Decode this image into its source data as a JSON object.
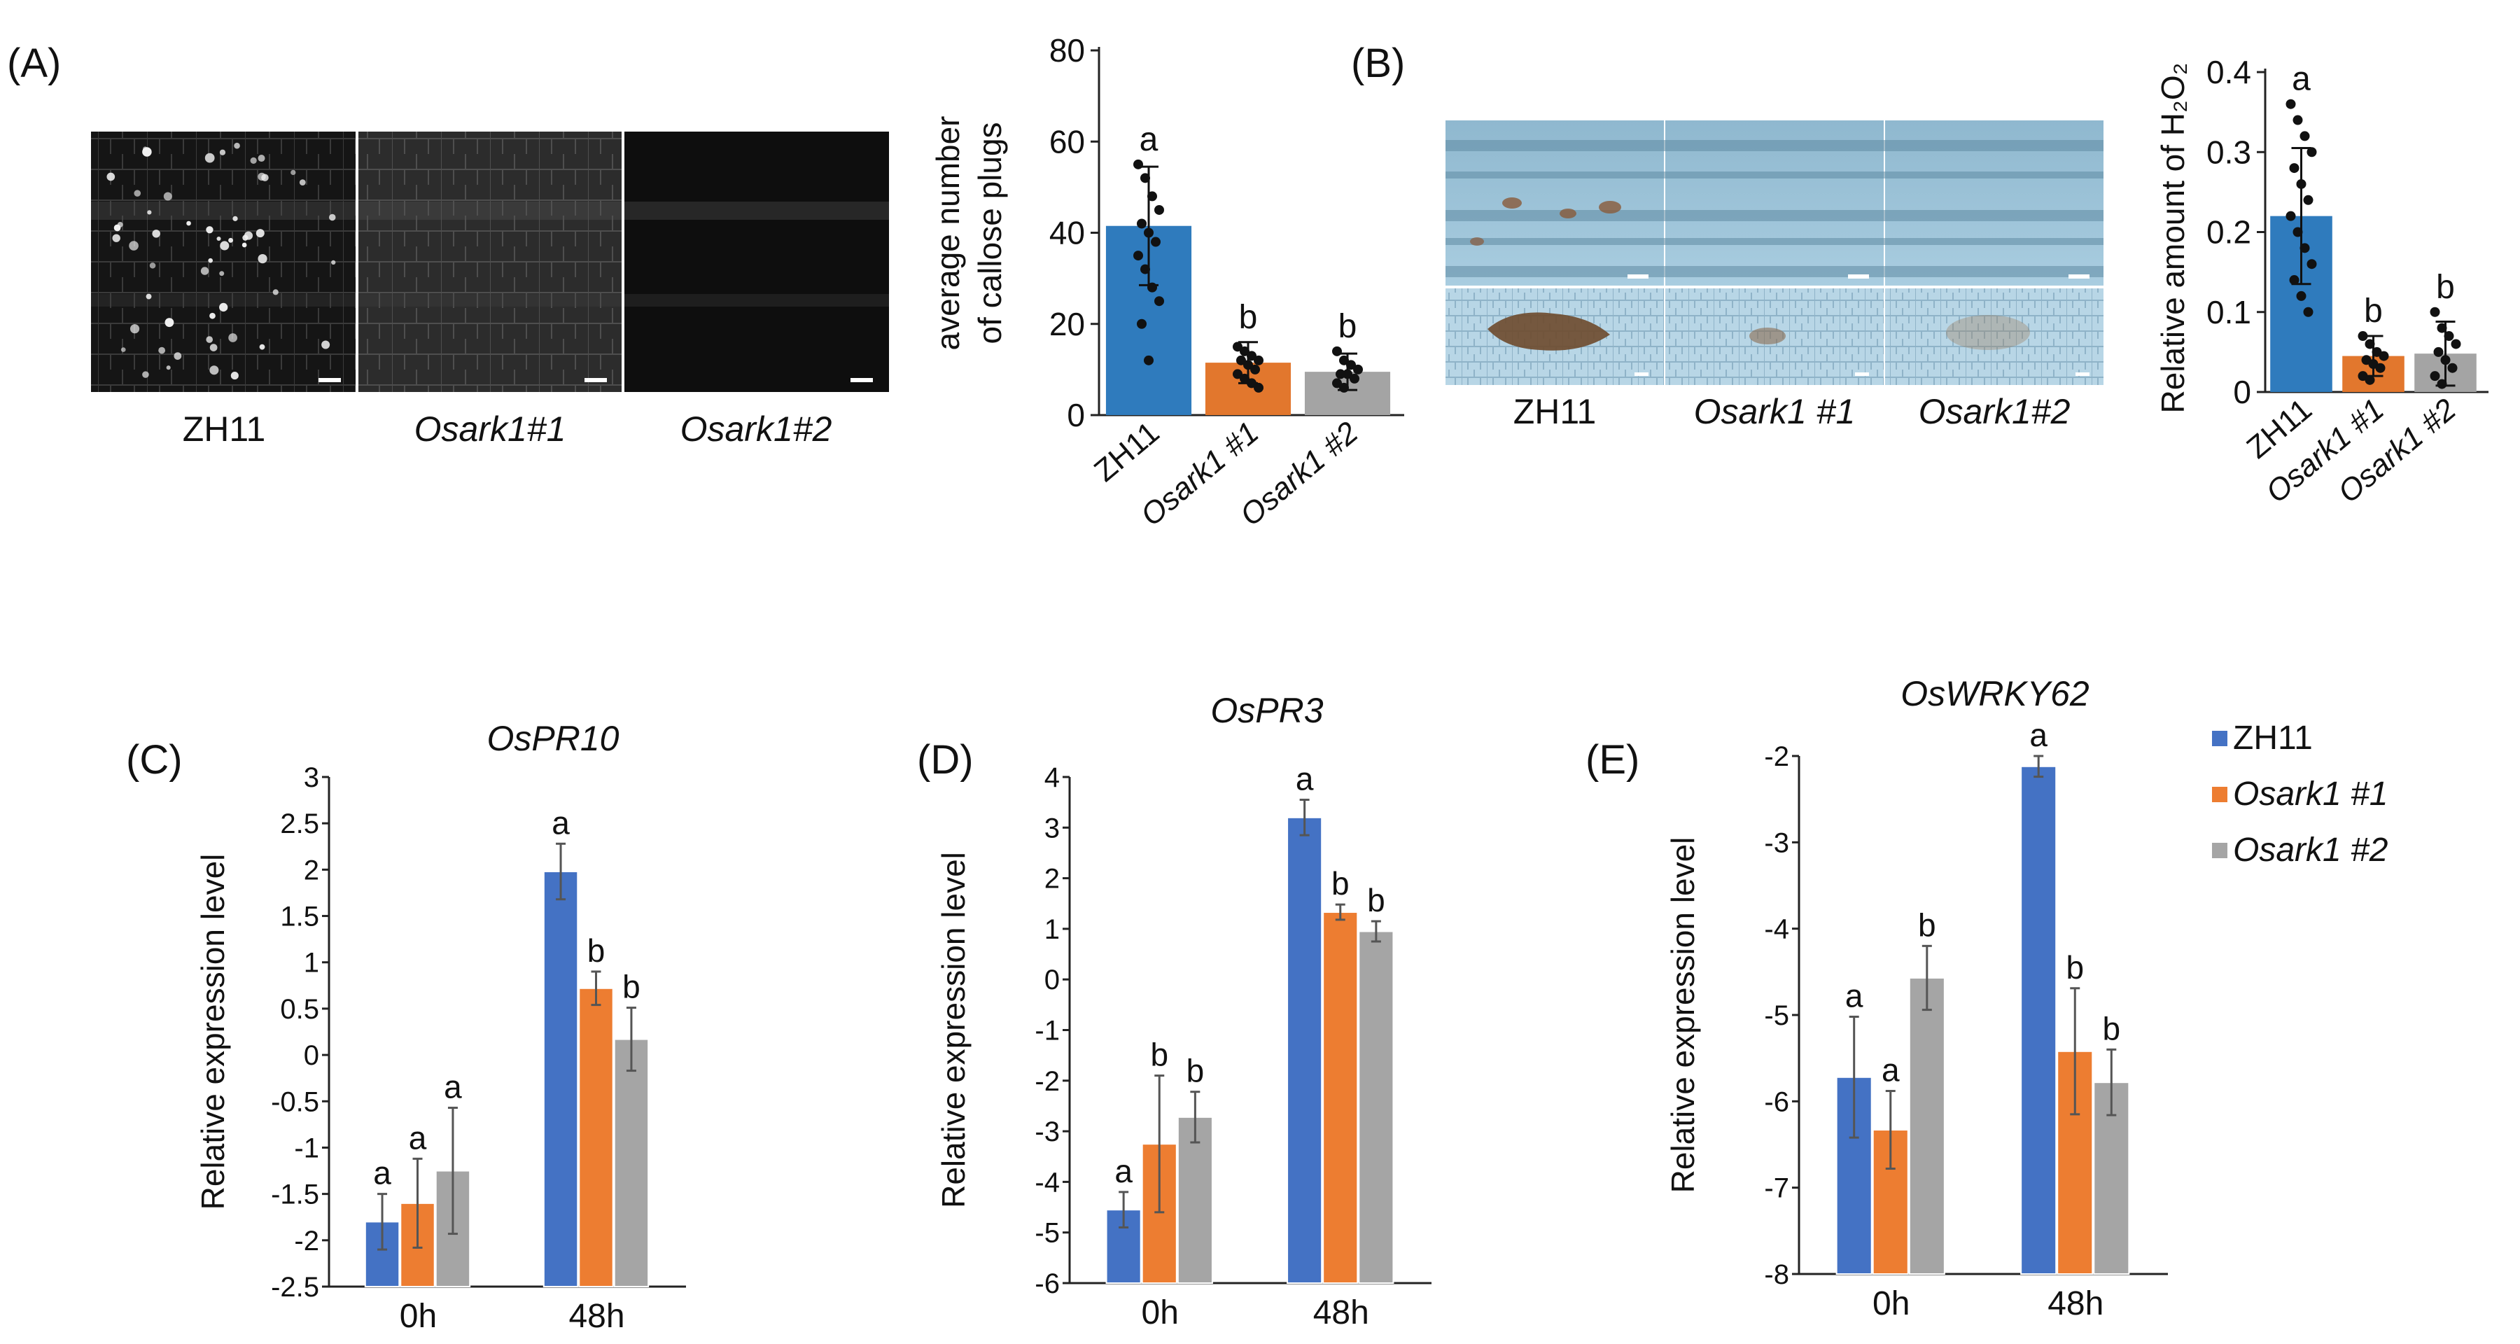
{
  "colors": {
    "zh11": "#2f7bbd",
    "ark1": "#e2772d",
    "ark2": "#a4a4a4",
    "blue_excel": "#4472c4",
    "orange_excel": "#ed7d31",
    "gray_excel": "#a5a5a5"
  },
  "panelA": {
    "label": "(A)",
    "image_labels": [
      "ZH11",
      "Osark1#1",
      "Osark1#2"
    ],
    "chart_data": {
      "type": "bar",
      "ylabel_line1": "average number",
      "ylabel_line2": "of callose plugs",
      "categories": [
        "ZH11",
        "Osark1 #1",
        "Osark1 #2"
      ],
      "values": [
        41.5,
        11.5,
        9.5
      ],
      "errors": [
        13,
        4.5,
        4
      ],
      "letters": [
        "a",
        "b",
        "b"
      ],
      "ylim": [
        0,
        80
      ],
      "yticks": [
        "0",
        "20",
        "40",
        "60",
        "80"
      ],
      "points": [
        [
          55,
          52,
          48,
          45,
          42,
          40,
          38,
          35,
          32,
          28,
          25,
          20,
          12
        ],
        [
          15,
          14,
          13,
          12,
          12,
          11,
          10,
          9,
          8,
          7,
          6
        ],
        [
          14,
          12,
          11,
          10,
          9,
          9,
          8,
          7,
          6
        ]
      ]
    }
  },
  "panelB": {
    "label": "(B)",
    "image_labels": [
      "ZH11",
      "Osark1 #1",
      "Osark1#2"
    ],
    "chart_data": {
      "type": "bar",
      "ylabel": "Relative amount of H₂O₂",
      "categories": [
        "ZH11",
        "Osark1 #1",
        "Osark1 #2"
      ],
      "values": [
        0.22,
        0.045,
        0.048
      ],
      "errors": [
        0.085,
        0.025,
        0.04
      ],
      "letters": [
        "a",
        "b",
        "b"
      ],
      "ylim": [
        0,
        0.4
      ],
      "yticks": [
        "0",
        "0.1",
        "0.2",
        "0.3",
        "0.4"
      ],
      "points": [
        [
          0.36,
          0.34,
          0.32,
          0.3,
          0.28,
          0.26,
          0.24,
          0.22,
          0.2,
          0.18,
          0.16,
          0.14,
          0.12,
          0.1
        ],
        [
          0.07,
          0.06,
          0.05,
          0.045,
          0.04,
          0.035,
          0.03,
          0.02,
          0.015
        ],
        [
          0.1,
          0.08,
          0.07,
          0.06,
          0.05,
          0.04,
          0.03,
          0.02,
          0.01
        ]
      ]
    }
  },
  "panelC": {
    "label": "(C)",
    "chart_data": {
      "type": "bar",
      "title": "OsPR10",
      "ylabel": "Relative expression level",
      "categories": [
        "0h",
        "48h"
      ],
      "ylim": [
        -2.5,
        3
      ],
      "yticks": [
        "-2.5",
        "-2",
        "-1.5",
        "-1",
        "-0.5",
        "0",
        "0.5",
        "1",
        "1.5",
        "2",
        "2.5",
        "3"
      ],
      "series": [
        {
          "name": "ZH11",
          "values": [
            -1.8,
            1.98
          ],
          "errors": [
            0.3,
            0.3
          ],
          "letters": [
            "a",
            "a"
          ]
        },
        {
          "name": "Osark1 #1",
          "values": [
            -1.6,
            0.72
          ],
          "errors": [
            0.48,
            0.18
          ],
          "letters": [
            "a",
            "b"
          ]
        },
        {
          "name": "Osark1 #2",
          "values": [
            -1.25,
            0.17
          ],
          "errors": [
            0.68,
            0.34
          ],
          "letters": [
            "a",
            "b"
          ]
        }
      ]
    }
  },
  "panelD": {
    "label": "(D)",
    "chart_data": {
      "type": "bar",
      "title": "OsPR3",
      "ylabel": "Relative expression level",
      "categories": [
        "0h",
        "48h"
      ],
      "ylim": [
        -6,
        4
      ],
      "yticks": [
        "-6",
        "-5",
        "-4",
        "-3",
        "-2",
        "-1",
        "0",
        "1",
        "2",
        "3",
        "4"
      ],
      "series": [
        {
          "name": "ZH11",
          "values": [
            -4.55,
            3.2
          ],
          "errors": [
            0.35,
            0.35
          ],
          "letters": [
            "a",
            "a"
          ]
        },
        {
          "name": "Osark1 #1",
          "values": [
            -3.25,
            1.33
          ],
          "errors": [
            1.35,
            0.15
          ],
          "letters": [
            "b",
            "b"
          ]
        },
        {
          "name": "Osark1 #2",
          "values": [
            -2.72,
            0.95
          ],
          "errors": [
            0.5,
            0.2
          ],
          "letters": [
            "b",
            "b"
          ]
        }
      ]
    }
  },
  "panelE": {
    "label": "(E)",
    "chart_data": {
      "type": "bar",
      "title": "OsWRKY62",
      "ylabel": "Relative expression level",
      "categories": [
        "0h",
        "48h"
      ],
      "ylim": [
        -8,
        -2
      ],
      "yticks": [
        "-8",
        "-7",
        "-6",
        "-5",
        "-4",
        "-3",
        "-2"
      ],
      "series": [
        {
          "name": "ZH11",
          "values": [
            -5.72,
            -2.12
          ],
          "errors": [
            0.7,
            0.12
          ],
          "letters": [
            "a",
            "a"
          ]
        },
        {
          "name": "Osark1 #1",
          "values": [
            -6.33,
            -5.42
          ],
          "errors": [
            0.45,
            0.73
          ],
          "letters": [
            "a",
            "b"
          ]
        },
        {
          "name": "Osark1 #2",
          "values": [
            -4.57,
            -5.78
          ],
          "errors": [
            0.37,
            0.38
          ],
          "letters": [
            "b",
            "b"
          ]
        }
      ]
    }
  },
  "legend": {
    "items": [
      "ZH11",
      "Osark1 #1",
      "Osark1 #2"
    ]
  }
}
